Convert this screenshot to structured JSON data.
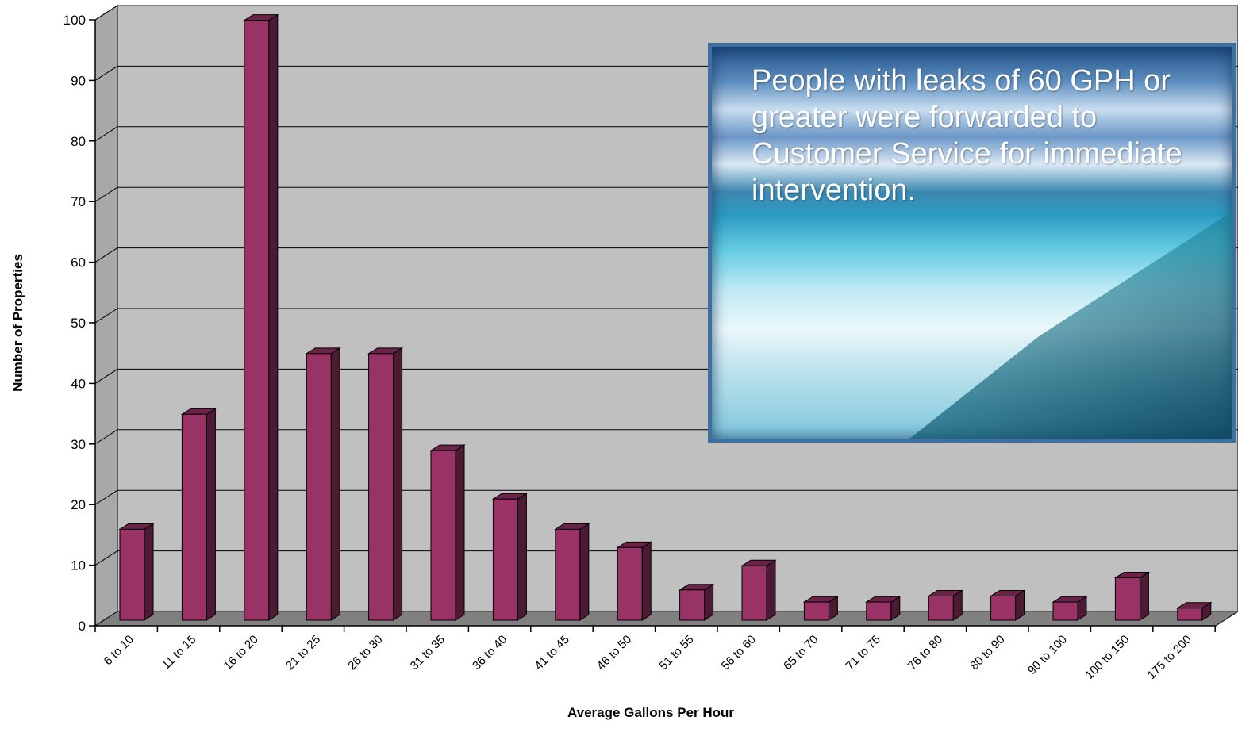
{
  "chart_data": {
    "type": "bar",
    "categories": [
      "6 to 10",
      "11 to 15",
      "16 to 20",
      "21 to 25",
      "26 to 30",
      "31 to 35",
      "36 to 40",
      "41 to 45",
      "46 to 50",
      "51 to 55",
      "56 to 60",
      "65 to 70",
      "71 to 75",
      "76 to 80",
      "80 to 90",
      "90 to 100",
      "100 to 150",
      "175 to 200"
    ],
    "values": [
      15,
      34,
      99,
      44,
      44,
      28,
      20,
      15,
      12,
      5,
      9,
      3,
      3,
      4,
      4,
      3,
      7,
      2
    ],
    "xlabel": "Average Gallons Per Hour",
    "ylabel": "Number of Properties",
    "ylim": [
      0,
      100
    ],
    "yticks": [
      0,
      10,
      20,
      30,
      40,
      50,
      60,
      70,
      80,
      90,
      100
    ],
    "grid": true,
    "colors": {
      "bar_front": "#993366",
      "bar_side": "#4d1a33",
      "bar_top": "#6b2447",
      "wall": "#c0c0c0",
      "floor": "#808080"
    }
  },
  "callout": {
    "text": "People with leaks of 60 GPH or greater were forwarded to Customer Service for immediate intervention.",
    "image": "waterfall-photo"
  }
}
